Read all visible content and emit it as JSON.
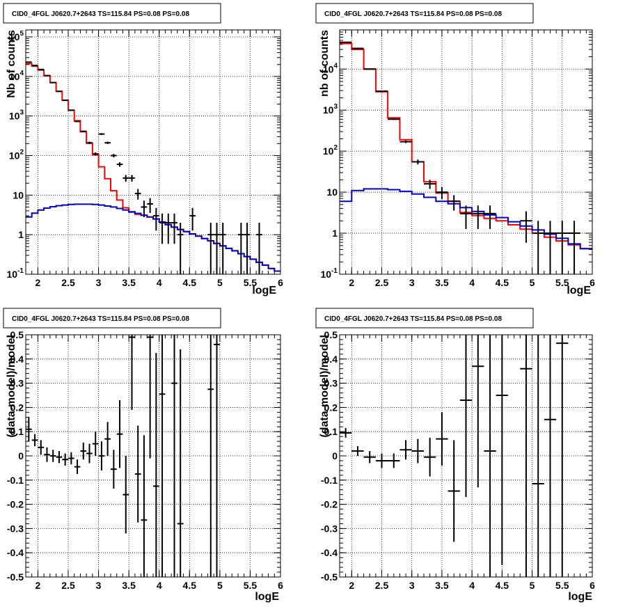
{
  "colors": {
    "data": "#000000",
    "total_model": "#ff0000",
    "source_model": "#0000cc",
    "grid": "#000000",
    "frame": "#000000"
  },
  "chart_data": [
    {
      "type": "histogram",
      "title": "CID0_4FGL J0620.7+2643 TS=115.84 PS=0.08 PS=0.08",
      "xlabel": "logE",
      "ylabel": "Nb of counts",
      "xlim": [
        1.8,
        6.0
      ],
      "ylim": [
        0.1,
        150000
      ],
      "yscale": "log",
      "grid": true,
      "x_ticks": [
        "2",
        "2.5",
        "3",
        "3.5",
        "4",
        "4.5",
        "5",
        "5.5",
        "6"
      ],
      "y_ticks": [
        "10^-1",
        "1",
        "10",
        "10^2",
        "10^3",
        "10^4",
        "10^5"
      ],
      "bin_edges": [
        1.8,
        1.9,
        2.0,
        2.1,
        2.2,
        2.3,
        2.4,
        2.5,
        2.6,
        2.7,
        2.8,
        2.9,
        3.0,
        3.1,
        3.2,
        3.3,
        3.4,
        3.5,
        3.6,
        3.7,
        3.8,
        3.9,
        4.0,
        4.1,
        4.2,
        4.3,
        4.4,
        4.5,
        4.6,
        4.7,
        4.8,
        4.9,
        5.0,
        5.1,
        5.2,
        5.3,
        5.4,
        5.5,
        5.6,
        5.7,
        5.8,
        5.9,
        6.0
      ],
      "series": [
        {
          "role": "total_model",
          "values": [
            21000,
            18000,
            14500,
            10500,
            7000,
            4200,
            2500,
            1400,
            760,
            400,
            205,
            105,
            52,
            26,
            13,
            7.5,
            4.8,
            3.7,
            3.3,
            3.1,
            2.8,
            2.5,
            2.1,
            1.8,
            1.55,
            1.35,
            1.2,
            1.05,
            0.92,
            0.8,
            0.7,
            0.6,
            0.52,
            0.45,
            0.39,
            0.33,
            0.28,
            0.24,
            0.2,
            0.17,
            0.14,
            0.12
          ]
        },
        {
          "role": "source_model",
          "values": [
            2.8,
            3.5,
            4.2,
            4.7,
            5.1,
            5.4,
            5.6,
            5.8,
            5.9,
            5.9,
            5.9,
            5.8,
            5.6,
            5.3,
            5.0,
            4.6,
            4.2,
            3.8,
            3.45,
            3.1,
            2.8,
            2.5,
            2.1,
            1.8,
            1.55,
            1.35,
            1.2,
            1.05,
            0.92,
            0.8,
            0.7,
            0.6,
            0.52,
            0.45,
            0.39,
            0.33,
            0.28,
            0.24,
            0.2,
            0.17,
            0.14,
            0.12
          ]
        },
        {
          "role": "data",
          "points": [
            {
              "x": 1.85,
              "y": 23000
            },
            {
              "x": 1.95,
              "y": 19000
            },
            {
              "x": 2.05,
              "y": 15000
            },
            {
              "x": 2.15,
              "y": 10500
            },
            {
              "x": 2.25,
              "y": 7000
            },
            {
              "x": 2.35,
              "y": 4200
            },
            {
              "x": 2.45,
              "y": 2500
            },
            {
              "x": 2.55,
              "y": 1400
            },
            {
              "x": 2.65,
              "y": 730
            },
            {
              "x": 2.75,
              "y": 410
            },
            {
              "x": 2.85,
              "y": 210
            },
            {
              "x": 2.95,
              "y": 110
            },
            {
              "x": 3.05,
              "y": 350
            },
            {
              "x": 3.15,
              "y": 210
            },
            {
              "x": 3.25,
              "y": 100
            },
            {
              "x": 3.35,
              "y": 60
            },
            {
              "x": 3.45,
              "y": 27
            },
            {
              "x": 3.55,
              "y": 27
            },
            {
              "x": 3.65,
              "y": 11
            },
            {
              "x": 3.75,
              "y": 5
            },
            {
              "x": 3.85,
              "y": 6
            },
            {
              "x": 3.95,
              "y": 3
            },
            {
              "x": 4.05,
              "y": 2
            },
            {
              "x": 4.15,
              "y": 2
            },
            {
              "x": 4.25,
              "y": 2
            },
            {
              "x": 4.35,
              "y": 1
            },
            {
              "x": 4.55,
              "y": 3
            },
            {
              "x": 4.85,
              "y": 1
            },
            {
              "x": 4.95,
              "y": 1
            },
            {
              "x": 5.05,
              "y": 1
            },
            {
              "x": 5.35,
              "y": 1
            },
            {
              "x": 5.45,
              "y": 1
            },
            {
              "x": 5.65,
              "y": 1
            }
          ]
        }
      ]
    },
    {
      "type": "histogram",
      "title": "CID0_4FGL J0620.7+2643 TS=115.84 PS=0.08 PS=0.08",
      "xlabel": "logE",
      "ylabel": "nb of counts",
      "xlim": [
        1.8,
        6.0
      ],
      "ylim": [
        0.1,
        90000
      ],
      "yscale": "log",
      "grid": true,
      "x_ticks": [
        "2",
        "2.5",
        "3",
        "3.5",
        "4",
        "4.5",
        "5",
        "5.5",
        "6"
      ],
      "y_ticks": [
        "10^-1",
        "1",
        "10",
        "10^2",
        "10^3",
        "10^4"
      ],
      "bin_edges": [
        1.8,
        2.0,
        2.2,
        2.4,
        2.6,
        2.8,
        3.0,
        3.2,
        3.4,
        3.6,
        3.8,
        4.0,
        4.2,
        4.4,
        4.6,
        4.8,
        5.0,
        5.2,
        5.4,
        5.6,
        5.8,
        6.0
      ],
      "series": [
        {
          "role": "total_model",
          "values": [
            42000,
            30000,
            10000,
            2800,
            650,
            190,
            55,
            18,
            9.5,
            6,
            3.2,
            2.7,
            2.3,
            2.0,
            1.6,
            1.25,
            1.0,
            0.8,
            0.65,
            0.52,
            0.42
          ]
        },
        {
          "role": "source_model",
          "values": [
            6,
            11,
            12,
            12,
            11.5,
            10.5,
            9,
            7.5,
            6,
            5.2,
            4.2,
            3.4,
            2.8,
            2.4,
            1.9,
            1.5,
            1.2,
            0.95,
            0.75,
            0.55,
            0.42
          ]
        },
        {
          "role": "data",
          "points": [
            {
              "x": 1.9,
              "y": 45000
            },
            {
              "x": 2.1,
              "y": 32000
            },
            {
              "x": 2.3,
              "y": 10000
            },
            {
              "x": 2.5,
              "y": 2900
            },
            {
              "x": 2.7,
              "y": 600
            },
            {
              "x": 2.9,
              "y": 170
            },
            {
              "x": 3.1,
              "y": 55
            },
            {
              "x": 3.3,
              "y": 16
            },
            {
              "x": 3.5,
              "y": 10
            },
            {
              "x": 3.7,
              "y": 6
            },
            {
              "x": 3.9,
              "y": 3
            },
            {
              "x": 4.1,
              "y": 3
            },
            {
              "x": 4.3,
              "y": 3
            },
            {
              "x": 4.9,
              "y": 2
            },
            {
              "x": 5.1,
              "y": 1
            },
            {
              "x": 5.3,
              "y": 1
            },
            {
              "x": 5.5,
              "y": 1
            },
            {
              "x": 5.7,
              "y": 1
            }
          ]
        }
      ]
    },
    {
      "type": "scatter",
      "title": "CID0_4FGL J0620.7+2643 TS=115.84 PS=0.08 PS=0.08",
      "xlabel": "logE",
      "ylabel": "(data-model)/model",
      "xlim": [
        1.8,
        6.0
      ],
      "ylim": [
        -0.5,
        0.5
      ],
      "grid": true,
      "x_ticks": [
        "2",
        "2.5",
        "3",
        "3.5",
        "4",
        "4.5",
        "5",
        "5.5",
        "6"
      ],
      "y_ticks": [
        "-0.5",
        "-0.4",
        "-0.3",
        "-0.2",
        "-0.1",
        "0",
        "0.1",
        "0.2",
        "0.3",
        "0.4",
        "0.5"
      ],
      "series": [
        {
          "role": "data",
          "xerr": 0.05,
          "points": [
            {
              "x": 1.85,
              "y": 0.11,
              "err": 0.05
            },
            {
              "x": 1.95,
              "y": 0.065,
              "err": 0.025
            },
            {
              "x": 2.05,
              "y": 0.035,
              "err": 0.03
            },
            {
              "x": 2.15,
              "y": 0.005,
              "err": 0.03
            },
            {
              "x": 2.25,
              "y": 0.0,
              "err": 0.025
            },
            {
              "x": 2.35,
              "y": -0.005,
              "err": 0.025
            },
            {
              "x": 2.45,
              "y": -0.015,
              "err": 0.025
            },
            {
              "x": 2.55,
              "y": -0.01,
              "err": 0.025
            },
            {
              "x": 2.65,
              "y": -0.045,
              "err": 0.03
            },
            {
              "x": 2.75,
              "y": 0.02,
              "err": 0.035
            },
            {
              "x": 2.85,
              "y": 0.01,
              "err": 0.04
            },
            {
              "x": 2.95,
              "y": 0.05,
              "err": 0.05
            },
            {
              "x": 3.05,
              "y": 0.0,
              "err": 0.06
            },
            {
              "x": 3.15,
              "y": 0.07,
              "err": 0.07
            },
            {
              "x": 3.25,
              "y": -0.055,
              "err": 0.08
            },
            {
              "x": 3.35,
              "y": 0.09,
              "err": 0.14
            },
            {
              "x": 3.45,
              "y": -0.16,
              "err": 0.16
            },
            {
              "x": 3.55,
              "y": 0.49,
              "err": 0.3
            },
            {
              "x": 3.65,
              "y": -0.075,
              "err": 0.2
            },
            {
              "x": 3.75,
              "y": -0.265,
              "err": 0.35
            },
            {
              "x": 3.85,
              "y": 0.49,
              "err": 0.5
            },
            {
              "x": 3.95,
              "y": -0.125,
              "err": 0.55
            },
            {
              "x": 4.05,
              "y": 0.255,
              "err": 0.8
            },
            {
              "x": 4.25,
              "y": 0.3,
              "err": 0.8
            },
            {
              "x": 4.35,
              "y": -0.28,
              "err": 0.72
            },
            {
              "x": 4.85,
              "y": 0.275,
              "err": 1.0
            },
            {
              "x": 4.95,
              "y": 0.46,
              "err": 1.0
            }
          ]
        }
      ]
    },
    {
      "type": "scatter",
      "title": "CID0_4FGL J0620.7+2643 TS=115.84 PS=0.08 PS=0.08",
      "xlabel": "logE",
      "ylabel": "(data-model)/model",
      "xlim": [
        1.8,
        6.0
      ],
      "ylim": [
        -0.5,
        0.5
      ],
      "grid": true,
      "x_ticks": [
        "2",
        "2.5",
        "3",
        "3.5",
        "4",
        "4.5",
        "5",
        "5.5",
        "6"
      ],
      "y_ticks": [
        "-0.5",
        "-0.4",
        "-0.3",
        "-0.2",
        "-0.1",
        "0",
        "0.1",
        "0.2",
        "0.3",
        "0.4",
        "0.5"
      ],
      "series": [
        {
          "role": "data",
          "xerr": 0.1,
          "points": [
            {
              "x": 1.9,
              "y": 0.095,
              "err": 0.02
            },
            {
              "x": 2.1,
              "y": 0.02,
              "err": 0.02
            },
            {
              "x": 2.3,
              "y": -0.005,
              "err": 0.025
            },
            {
              "x": 2.5,
              "y": -0.02,
              "err": 0.03
            },
            {
              "x": 2.7,
              "y": -0.02,
              "err": 0.03
            },
            {
              "x": 2.9,
              "y": 0.025,
              "err": 0.04
            },
            {
              "x": 3.1,
              "y": 0.02,
              "err": 0.05
            },
            {
              "x": 3.3,
              "y": -0.005,
              "err": 0.08
            },
            {
              "x": 3.5,
              "y": 0.07,
              "err": 0.11
            },
            {
              "x": 3.7,
              "y": -0.145,
              "err": 0.21
            },
            {
              "x": 3.9,
              "y": 0.23,
              "err": 0.4
            },
            {
              "x": 4.1,
              "y": 0.37,
              "err": 0.5
            },
            {
              "x": 4.3,
              "y": 0.02,
              "err": 0.9
            },
            {
              "x": 4.5,
              "y": 0.25,
              "err": 0.7
            },
            {
              "x": 4.9,
              "y": 0.36,
              "err": 1.0
            },
            {
              "x": 5.1,
              "y": -0.115,
              "err": 1.0
            },
            {
              "x": 5.3,
              "y": 0.15,
              "err": 1.0
            },
            {
              "x": 5.5,
              "y": 0.465,
              "err": 1.0
            }
          ]
        }
      ]
    }
  ]
}
